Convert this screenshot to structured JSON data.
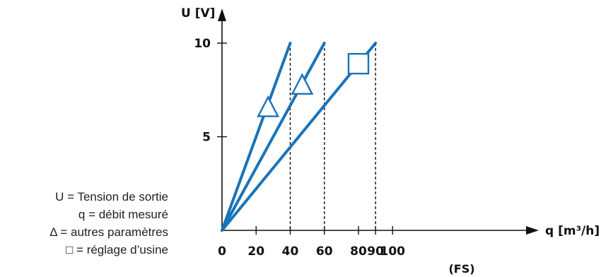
{
  "chart_data": {
    "type": "line",
    "axes": {
      "y_label": "U [V]",
      "x_label": "q [m³/h]",
      "x_ticks": [
        {
          "value": 0,
          "label": "0"
        },
        {
          "value": 20,
          "label": "20"
        },
        {
          "value": 40,
          "label": "40"
        },
        {
          "value": 60,
          "label": "60"
        },
        {
          "value": 80,
          "label": "80"
        },
        {
          "value": 90,
          "label": "90"
        },
        {
          "value": 100,
          "label": "100"
        }
      ],
      "y_ticks": [
        {
          "value": 5,
          "label": "5"
        },
        {
          "value": 10,
          "label": "10"
        }
      ],
      "x_sublabel": "(FS)",
      "xlim": [
        0,
        140
      ],
      "ylim": [
        0,
        12.5
      ]
    },
    "series": [
      {
        "points": [
          [
            0,
            0
          ],
          [
            40,
            10
          ]
        ],
        "marker": "triangle",
        "marker_at": [
          27,
          6.6
        ]
      },
      {
        "points": [
          [
            0,
            0
          ],
          [
            60,
            10
          ]
        ],
        "marker": "triangle",
        "marker_at": [
          47,
          7.8
        ]
      },
      {
        "points": [
          [
            0,
            0
          ],
          [
            90,
            10
          ]
        ],
        "marker": "square",
        "marker_at": [
          80,
          8.9
        ]
      }
    ],
    "dashed_guides_at_x": [
      40,
      60,
      90
    ],
    "colors": {
      "line": "#1a73b8",
      "axis": "#111111",
      "text": "#111111"
    }
  },
  "legend": {
    "lines": [
      "U = Tension de sortie",
      "q = débit mesuré",
      "Δ = autres paramètres",
      "□ = réglage d’usine"
    ]
  }
}
